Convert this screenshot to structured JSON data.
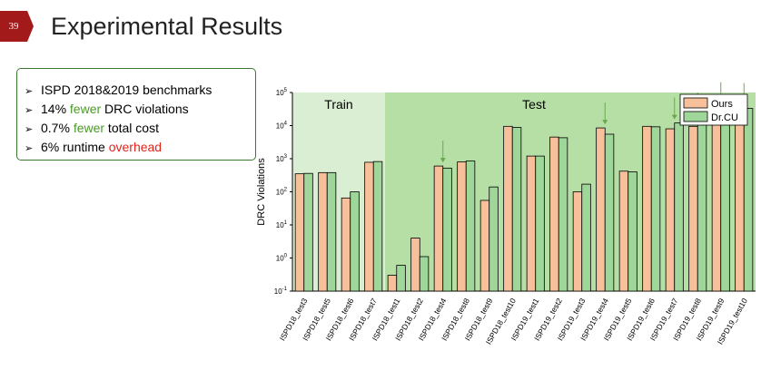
{
  "slide": {
    "number": "39",
    "title": "Experimental Results",
    "accent_color": "#a31a1a"
  },
  "summary": {
    "items": [
      {
        "parts": [
          {
            "text": "ISPD 2018&2019 benchmarks",
            "color": ""
          }
        ]
      },
      {
        "parts": [
          {
            "text": "14% ",
            "color": ""
          },
          {
            "text": "fewer",
            "color": "green"
          },
          {
            "text": " DRC violations",
            "color": ""
          }
        ]
      },
      {
        "parts": [
          {
            "text": "0.7% ",
            "color": ""
          },
          {
            "text": "fewer",
            "color": "green"
          },
          {
            "text": " total cost",
            "color": ""
          }
        ]
      },
      {
        "parts": [
          {
            "text": "6% runtime ",
            "color": ""
          },
          {
            "text": "overhead",
            "color": "red"
          }
        ]
      }
    ]
  },
  "chart_data": {
    "type": "bar",
    "ylabel": "DRC Violations",
    "yscale": "log",
    "ylim": [
      0.1,
      100000
    ],
    "yticks": [
      {
        "value": 0.1,
        "base": "10",
        "exp": "-1"
      },
      {
        "value": 1,
        "base": "10",
        "exp": "0"
      },
      {
        "value": 10,
        "base": "10",
        "exp": "1"
      },
      {
        "value": 100,
        "base": "10",
        "exp": "2"
      },
      {
        "value": 1000,
        "base": "10",
        "exp": "3"
      },
      {
        "value": 10000,
        "base": "10",
        "exp": "4"
      },
      {
        "value": 100000,
        "base": "10",
        "exp": "5"
      }
    ],
    "regions": [
      {
        "label": "Train",
        "from": 0,
        "to": 3,
        "color": "#d9eed2"
      },
      {
        "label": "Test",
        "from": 4,
        "to": 19,
        "color": "#b6dfa6"
      }
    ],
    "categories": [
      "ISPD18_test3",
      "ISPD18_test5",
      "ISPD18_test6",
      "ISPD18_test7",
      "ISPD18_test1",
      "ISPD18_test2",
      "ISPD18_test4",
      "ISPD18_test8",
      "ISPD18_test9",
      "ISPD18_test10",
      "ISPD19_test1",
      "ISPD19_test2",
      "ISPD19_test3",
      "ISPD19_test4",
      "ISPD19_test5",
      "ISPD19_test6",
      "ISPD19_test7",
      "ISPD19_test8",
      "ISPD19_test9",
      "ISPD19_test10"
    ],
    "series": [
      {
        "name": "Ours",
        "color": "#f8c09a",
        "values": [
          350,
          380,
          65,
          780,
          0.3,
          4,
          600,
          800,
          55,
          9500,
          1200,
          4500,
          100,
          8500,
          420,
          9500,
          8000,
          9500,
          18000,
          20000
        ]
      },
      {
        "name": "Dr.CU",
        "color": "#9fd79a",
        "values": [
          360,
          380,
          100,
          820,
          0.6,
          1.1,
          520,
          850,
          140,
          8800,
          1200,
          4300,
          170,
          5500,
          400,
          9200,
          12000,
          17000,
          35000,
          33000
        ]
      }
    ],
    "arrows": [
      6,
      13,
      16,
      17,
      18,
      19
    ],
    "arrow_color": "#6aa84f",
    "legend_position": "top-right"
  }
}
